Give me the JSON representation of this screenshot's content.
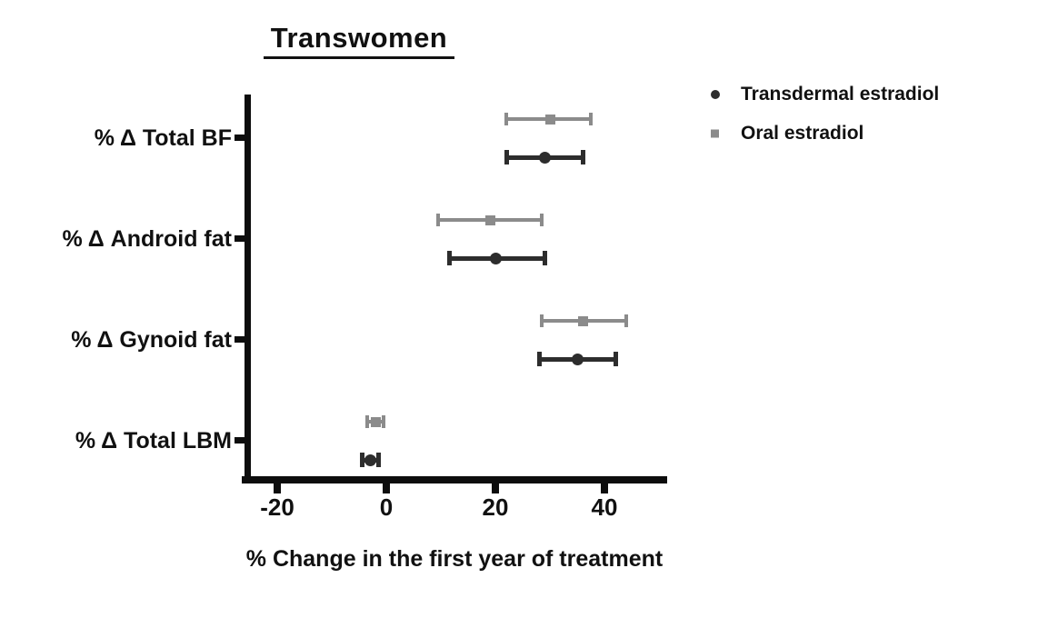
{
  "title": "Transwomen",
  "legend": [
    {
      "label": "Transdermal estradiol",
      "marker": "circle",
      "color": "#2d2d2d"
    },
    {
      "label": "Oral estradiol",
      "marker": "square",
      "color": "#8b8b8b"
    }
  ],
  "chart_data": {
    "type": "scatter",
    "subtype": "horizontal-dot-plot-with-error-bars",
    "title": "Transwomen",
    "xlabel": "% Change in the first year of treatment",
    "ylabel": "",
    "xlim": [
      -27,
      51
    ],
    "xticks": [
      -20,
      0,
      20,
      40
    ],
    "grid": false,
    "legend_position": "top-right-outside",
    "categories": [
      "% Δ Total BF",
      "% Δ Android fat",
      "% Δ Gynoid fat",
      "% Δ Total LBM"
    ],
    "series": [
      {
        "name": "Transdermal estradiol",
        "marker": "circle",
        "color": "#2d2d2d",
        "points": [
          {
            "category": "% Δ Total BF",
            "value": 29,
            "low": 22,
            "high": 36
          },
          {
            "category": "% Δ Android fat",
            "value": 20,
            "low": 11.5,
            "high": 29
          },
          {
            "category": "% Δ Gynoid fat",
            "value": 35,
            "low": 28,
            "high": 42
          },
          {
            "category": "% Δ Total LBM",
            "value": -3,
            "low": -4.5,
            "high": -1.5
          }
        ]
      },
      {
        "name": "Oral estradiol",
        "marker": "square",
        "color": "#8b8b8b",
        "points": [
          {
            "category": "% Δ Total BF",
            "value": 30,
            "low": 22,
            "high": 37.5
          },
          {
            "category": "% Δ Android fat",
            "value": 19,
            "low": 9.5,
            "high": 28.5
          },
          {
            "category": "% Δ Gynoid fat",
            "value": 36,
            "low": 28.5,
            "high": 44
          },
          {
            "category": "% Δ Total LBM",
            "value": -2,
            "low": -3.5,
            "high": -0.5
          }
        ]
      }
    ]
  }
}
